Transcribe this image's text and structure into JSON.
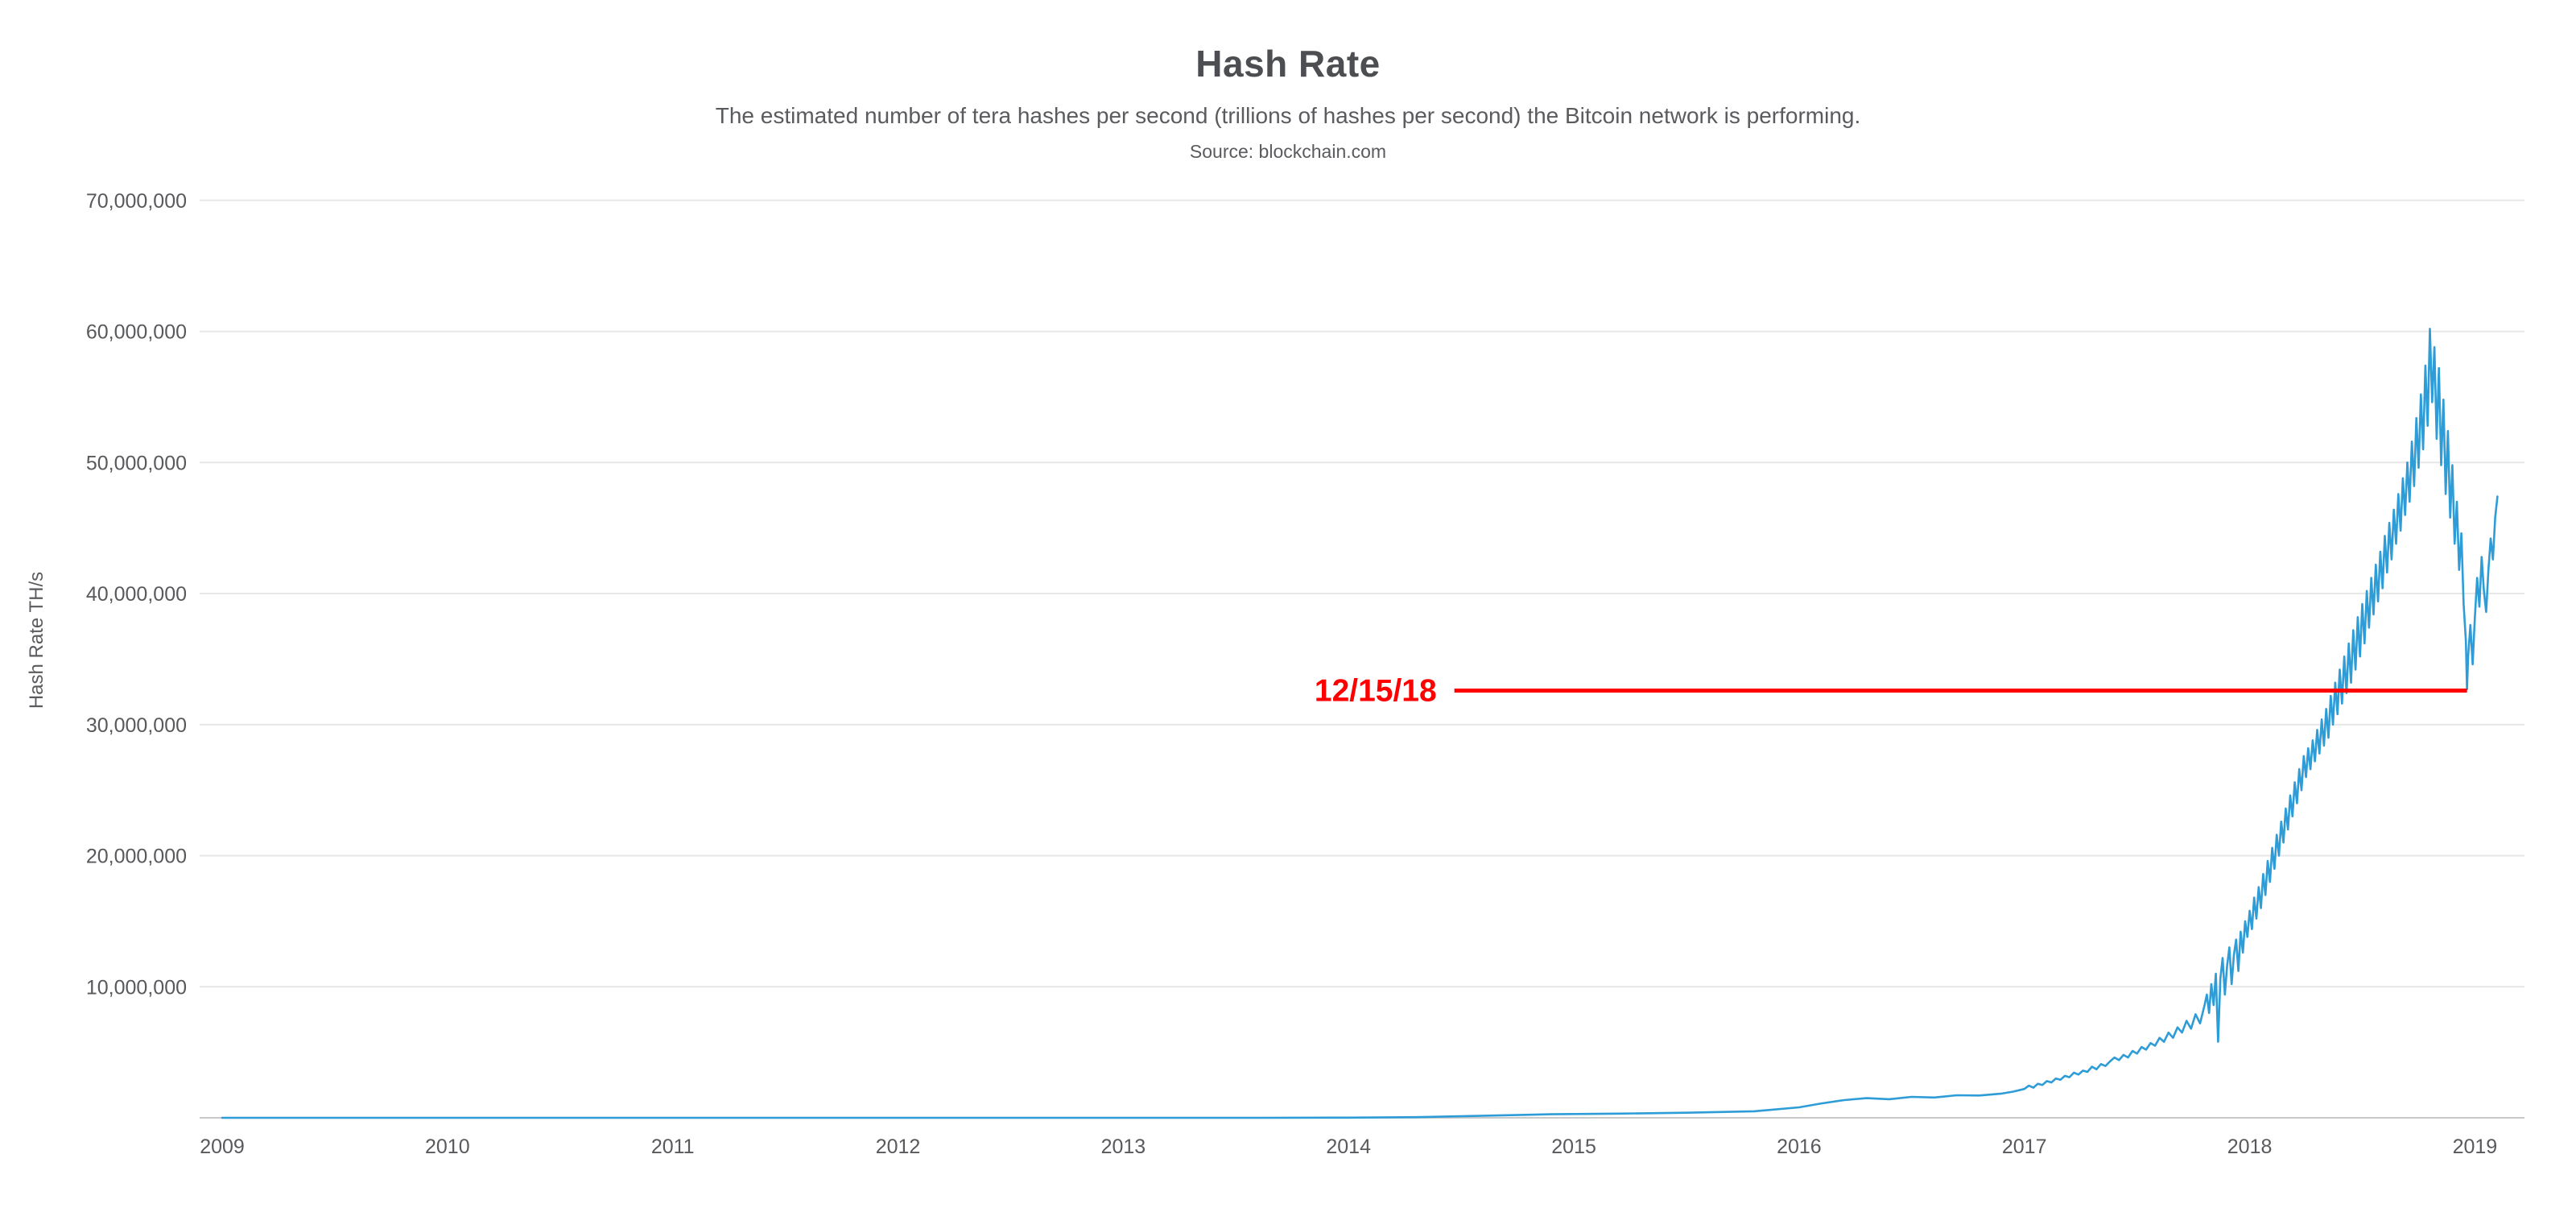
{
  "page": {
    "background": "#ffffff"
  },
  "chart_data": {
    "type": "line",
    "title": "Hash Rate",
    "subtitle": "The estimated number of tera hashes per second (trillions of hashes per second) the Bitcoin network is performing.",
    "source": "Source: blockchain.com",
    "ylabel": "Hash Rate TH/s",
    "unit": "TH/s",
    "series_unit": "million TH/s",
    "legend": "none",
    "grid": "horizontal only",
    "xlim": [
      2008.9,
      2019.22
    ],
    "ylim": [
      0,
      73
    ],
    "x_ticks": {
      "values": [
        2009,
        2010,
        2011,
        2012,
        2013,
        2014,
        2015,
        2016,
        2017,
        2018,
        2019
      ],
      "labels": [
        "2009",
        "2010",
        "2011",
        "2012",
        "2013",
        "2014",
        "2015",
        "2016",
        "2017",
        "2018",
        "2019"
      ]
    },
    "y_ticks": {
      "values": [
        10,
        20,
        30,
        40,
        50,
        60,
        70
      ],
      "labels": [
        "10,000,000",
        "20,000,000",
        "30,000,000",
        "40,000,000",
        "50,000,000",
        "60,000,000",
        "70,000,000"
      ]
    },
    "colors": {
      "line": "#2E9CD6",
      "grid": "#e7e7e7",
      "axis": "#c9c9c9",
      "text": "#58595c",
      "annotation": "#ff0000"
    },
    "annotation": {
      "label": "12/15/18",
      "value": 32.6,
      "x_start": 2014.47,
      "x_end": 2018.965
    },
    "series": [
      {
        "name": "Hash Rate",
        "points": [
          [
            2009.0,
            1e-06
          ],
          [
            2010.0,
            1e-06
          ],
          [
            2011.0,
            1e-05
          ],
          [
            2012.0,
            2e-05
          ],
          [
            2013.0,
            0.0001
          ],
          [
            2013.6,
            0.001
          ],
          [
            2014.0,
            0.015
          ],
          [
            2014.3,
            0.05
          ],
          [
            2014.6,
            0.16
          ],
          [
            2014.9,
            0.27
          ],
          [
            2015.2,
            0.32
          ],
          [
            2015.5,
            0.39
          ],
          [
            2015.8,
            0.5
          ],
          [
            2016.0,
            0.8
          ],
          [
            2016.1,
            1.1
          ],
          [
            2016.2,
            1.35
          ],
          [
            2016.3,
            1.5
          ],
          [
            2016.4,
            1.42
          ],
          [
            2016.5,
            1.6
          ],
          [
            2016.6,
            1.55
          ],
          [
            2016.7,
            1.72
          ],
          [
            2016.8,
            1.7
          ],
          [
            2016.9,
            1.85
          ],
          [
            2016.95,
            2.0
          ],
          [
            2017.0,
            2.2
          ],
          [
            2017.02,
            2.45
          ],
          [
            2017.04,
            2.3
          ],
          [
            2017.06,
            2.6
          ],
          [
            2017.08,
            2.5
          ],
          [
            2017.1,
            2.8
          ],
          [
            2017.12,
            2.7
          ],
          [
            2017.14,
            3.0
          ],
          [
            2017.16,
            2.9
          ],
          [
            2017.18,
            3.2
          ],
          [
            2017.2,
            3.1
          ],
          [
            2017.22,
            3.45
          ],
          [
            2017.24,
            3.3
          ],
          [
            2017.26,
            3.6
          ],
          [
            2017.28,
            3.5
          ],
          [
            2017.3,
            3.9
          ],
          [
            2017.32,
            3.7
          ],
          [
            2017.34,
            4.1
          ],
          [
            2017.36,
            3.95
          ],
          [
            2017.38,
            4.3
          ],
          [
            2017.4,
            4.6
          ],
          [
            2017.42,
            4.4
          ],
          [
            2017.44,
            4.8
          ],
          [
            2017.46,
            4.6
          ],
          [
            2017.48,
            5.1
          ],
          [
            2017.5,
            4.9
          ],
          [
            2017.52,
            5.4
          ],
          [
            2017.54,
            5.2
          ],
          [
            2017.56,
            5.7
          ],
          [
            2017.58,
            5.5
          ],
          [
            2017.6,
            6.1
          ],
          [
            2017.62,
            5.8
          ],
          [
            2017.64,
            6.5
          ],
          [
            2017.66,
            6.1
          ],
          [
            2017.68,
            6.9
          ],
          [
            2017.7,
            6.5
          ],
          [
            2017.72,
            7.4
          ],
          [
            2017.74,
            6.8
          ],
          [
            2017.76,
            7.9
          ],
          [
            2017.78,
            7.2
          ],
          [
            2017.8,
            8.6
          ],
          [
            2017.81,
            9.4
          ],
          [
            2017.82,
            8.0
          ],
          [
            2017.83,
            10.2
          ],
          [
            2017.84,
            8.6
          ],
          [
            2017.85,
            11.0
          ],
          [
            2017.86,
            5.8
          ],
          [
            2017.87,
            10.6
          ],
          [
            2017.88,
            12.2
          ],
          [
            2017.89,
            9.4
          ],
          [
            2017.9,
            11.6
          ],
          [
            2017.91,
            13.0
          ],
          [
            2017.92,
            10.2
          ],
          [
            2017.93,
            12.4
          ],
          [
            2017.94,
            13.6
          ],
          [
            2017.95,
            11.2
          ],
          [
            2017.96,
            14.2
          ],
          [
            2017.97,
            12.6
          ],
          [
            2017.98,
            15.0
          ],
          [
            2017.99,
            13.8
          ],
          [
            2018.0,
            15.8
          ],
          [
            2018.01,
            14.4
          ],
          [
            2018.02,
            16.8
          ],
          [
            2018.03,
            15.2
          ],
          [
            2018.04,
            17.6
          ],
          [
            2018.05,
            16.0
          ],
          [
            2018.06,
            18.6
          ],
          [
            2018.07,
            17.0
          ],
          [
            2018.08,
            19.6
          ],
          [
            2018.09,
            18.0
          ],
          [
            2018.1,
            20.6
          ],
          [
            2018.11,
            19.0
          ],
          [
            2018.12,
            21.6
          ],
          [
            2018.13,
            20.0
          ],
          [
            2018.14,
            22.6
          ],
          [
            2018.15,
            21.0
          ],
          [
            2018.16,
            23.6
          ],
          [
            2018.17,
            22.0
          ],
          [
            2018.18,
            24.6
          ],
          [
            2018.19,
            23.0
          ],
          [
            2018.2,
            25.6
          ],
          [
            2018.21,
            24.0
          ],
          [
            2018.22,
            26.6
          ],
          [
            2018.23,
            25.0
          ],
          [
            2018.24,
            27.6
          ],
          [
            2018.25,
            26.0
          ],
          [
            2018.26,
            28.2
          ],
          [
            2018.27,
            26.6
          ],
          [
            2018.28,
            28.8
          ],
          [
            2018.29,
            27.2
          ],
          [
            2018.3,
            29.6
          ],
          [
            2018.31,
            27.8
          ],
          [
            2018.32,
            30.4
          ],
          [
            2018.33,
            28.4
          ],
          [
            2018.34,
            31.2
          ],
          [
            2018.35,
            29.0
          ],
          [
            2018.36,
            32.2
          ],
          [
            2018.37,
            30.0
          ],
          [
            2018.38,
            33.2
          ],
          [
            2018.39,
            30.8
          ],
          [
            2018.4,
            34.2
          ],
          [
            2018.41,
            31.6
          ],
          [
            2018.42,
            35.2
          ],
          [
            2018.43,
            32.4
          ],
          [
            2018.44,
            36.2
          ],
          [
            2018.45,
            33.2
          ],
          [
            2018.46,
            37.2
          ],
          [
            2018.47,
            34.2
          ],
          [
            2018.48,
            38.2
          ],
          [
            2018.49,
            35.2
          ],
          [
            2018.5,
            39.2
          ],
          [
            2018.51,
            36.2
          ],
          [
            2018.52,
            40.2
          ],
          [
            2018.53,
            37.4
          ],
          [
            2018.54,
            41.2
          ],
          [
            2018.55,
            38.4
          ],
          [
            2018.56,
            42.2
          ],
          [
            2018.57,
            39.4
          ],
          [
            2018.58,
            43.2
          ],
          [
            2018.59,
            40.4
          ],
          [
            2018.6,
            44.4
          ],
          [
            2018.61,
            41.6
          ],
          [
            2018.62,
            45.4
          ],
          [
            2018.63,
            42.6
          ],
          [
            2018.64,
            46.4
          ],
          [
            2018.65,
            43.8
          ],
          [
            2018.66,
            47.6
          ],
          [
            2018.67,
            44.8
          ],
          [
            2018.68,
            48.8
          ],
          [
            2018.69,
            46.0
          ],
          [
            2018.7,
            50.0
          ],
          [
            2018.71,
            47.0
          ],
          [
            2018.72,
            51.6
          ],
          [
            2018.73,
            48.2
          ],
          [
            2018.74,
            53.4
          ],
          [
            2018.75,
            49.6
          ],
          [
            2018.76,
            55.2
          ],
          [
            2018.77,
            51.0
          ],
          [
            2018.78,
            57.4
          ],
          [
            2018.79,
            52.8
          ],
          [
            2018.8,
            60.2
          ],
          [
            2018.81,
            54.6
          ],
          [
            2018.82,
            58.8
          ],
          [
            2018.83,
            51.8
          ],
          [
            2018.84,
            57.2
          ],
          [
            2018.85,
            49.8
          ],
          [
            2018.86,
            54.8
          ],
          [
            2018.87,
            47.6
          ],
          [
            2018.88,
            52.4
          ],
          [
            2018.89,
            45.8
          ],
          [
            2018.9,
            49.8
          ],
          [
            2018.91,
            43.8
          ],
          [
            2018.92,
            47.0
          ],
          [
            2018.93,
            41.8
          ],
          [
            2018.94,
            44.6
          ],
          [
            2018.95,
            39.2
          ],
          [
            2018.96,
            36.4
          ],
          [
            2018.965,
            32.7
          ],
          [
            2018.97,
            35.2
          ],
          [
            2018.98,
            37.6
          ],
          [
            2018.99,
            34.6
          ],
          [
            2019.0,
            38.2
          ],
          [
            2019.01,
            41.2
          ],
          [
            2019.02,
            39.0
          ],
          [
            2019.03,
            42.8
          ],
          [
            2019.04,
            40.2
          ],
          [
            2019.05,
            38.6
          ],
          [
            2019.06,
            41.8
          ],
          [
            2019.07,
            44.2
          ],
          [
            2019.08,
            42.6
          ],
          [
            2019.09,
            45.8
          ],
          [
            2019.1,
            47.4
          ]
        ]
      }
    ]
  }
}
